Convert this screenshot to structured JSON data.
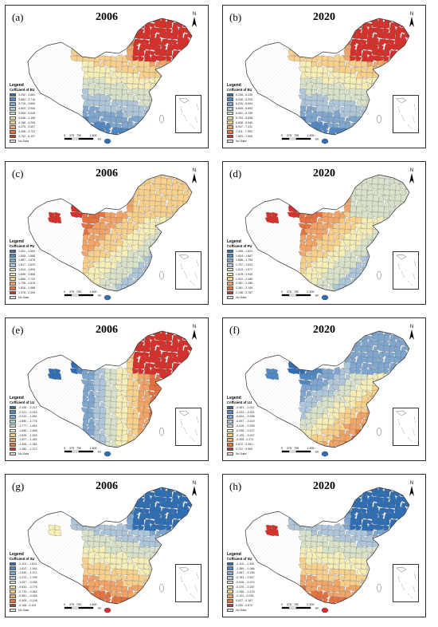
{
  "figure": {
    "panels": [
      {
        "label": "(a)",
        "year": "2006",
        "legend_title": "Legend",
        "legend_subtitle": "Cofficient of EU",
        "legend_items": [
          "3.292 - 3.681",
          "3.682 - 3.716",
          "3.716 - 3.600",
          "3.603 - 3.906",
          "3.908 - 4.045",
          "4.046 - 4.158",
          "4.158 - 4.208",
          "4.275 - 4.407",
          "4.408 - 4.731",
          "4.732 - 5.107"
        ],
        "no_data": "No Data",
        "colors": [
          "#2d6eb5",
          "#4f88c3",
          "#7ea6cf",
          "#aec6da",
          "#d8e2c8",
          "#f6eeb5",
          "#f8d08a",
          "#f2a466",
          "#e7703f",
          "#d7302a"
        ],
        "gradient": "diag",
        "invert": false,
        "northeast": 9,
        "xinjiang": -1
      },
      {
        "label": "(b)",
        "year": "2020",
        "legend_title": "Legend",
        "legend_subtitle": "Cofficient of EU",
        "legend_items": [
          "5.208 - 6.035",
          "6.036 - 6.226",
          "6.226 - 6.604",
          "6.605 - 6.693",
          "6.691 - 6.765",
          "6.754 - 6.838",
          "6.838 - 6.946",
          "6.947 - 7.411",
          "7.411 - 7.952",
          "7.853 - 7.505"
        ],
        "no_data": "No Data",
        "colors": [
          "#2d6eb5",
          "#4f88c3",
          "#7ea6cf",
          "#aec6da",
          "#d8e2c8",
          "#f6eeb5",
          "#f8d08a",
          "#f2a466",
          "#e7703f",
          "#d7302a"
        ],
        "gradient": "diag",
        "invert": false,
        "northeast": 9,
        "xinjiang": -1
      },
      {
        "label": "(c)",
        "year": "2006",
        "legend_title": "Legend",
        "legend_subtitle": "Cofficient of PU",
        "legend_items": [
          "1.401 - 1.504",
          "1.505 - 1.586",
          "1.587 - 1.676",
          "1.617 - 1.620",
          "1.614 - 1.694",
          "1.695 - 1.856",
          "1.856 - 1.734",
          "1.735 - 1.815",
          "1.816 - 1.986",
          "1.976 - 2.005"
        ],
        "no_data": "No Data",
        "colors": [
          "#2d6eb5",
          "#4f88c3",
          "#7ea6cf",
          "#aec6da",
          "#d8e2c8",
          "#f6eeb5",
          "#f8d08a",
          "#f2a466",
          "#e7703f",
          "#d7302a"
        ],
        "gradient": "coast",
        "invert": false,
        "northeast": 6,
        "xinjiang": 9
      },
      {
        "label": "(d)",
        "year": "2020",
        "legend_title": "Legend",
        "legend_subtitle": "Cofficient of PU",
        "legend_items": [
          "1.408 - 1.621",
          "1.624 - 1.687",
          "1.686 - 1.706",
          "1.707 - 1.812",
          "1.813 - 1.677",
          "1.678 - 1.949",
          "1.941 - 2.086",
          "2.087 - 2.285",
          "2.361 - 2.149",
          "2.148 - 2.767"
        ],
        "no_data": "No Data",
        "colors": [
          "#2d6eb5",
          "#4f88c3",
          "#7ea6cf",
          "#aec6da",
          "#d8e2c8",
          "#f6eeb5",
          "#f8d08a",
          "#f2a466",
          "#e7703f",
          "#d7302a"
        ],
        "gradient": "coast",
        "invert": false,
        "northeast": 4,
        "xinjiang": 9
      },
      {
        "label": "(e)",
        "year": "2006",
        "legend_title": "Legend",
        "legend_subtitle": "Cofficient of LU",
        "legend_items": [
          "-2.446 - -2.212",
          "-2.221 - -2.015",
          "-2.012 - -1.891",
          "-1.850 - -1.776",
          "-1.777 - -1.691",
          "-1.690 - -1.608",
          "-1.605 - -1.529",
          "-1.527 - -1.451",
          "-1.455 - -1.381",
          "-1.350 - -1.272"
        ],
        "no_data": "No Data",
        "colors": [
          "#2d6eb5",
          "#4f88c3",
          "#7ea6cf",
          "#aec6da",
          "#d8e2c8",
          "#f6eeb5",
          "#f8d08a",
          "#f2a466",
          "#e7703f",
          "#d7302a"
        ],
        "gradient": "east",
        "invert": false,
        "northeast": 9,
        "xinjiang": 0
      },
      {
        "label": "(f)",
        "year": "2020",
        "legend_title": "Legend",
        "legend_subtitle": "Cofficient of LU",
        "legend_items": [
          "-0.461 - -0.211",
          "-0.233 - -0.021",
          "-0.624 - -0.096",
          "-0.097 - -0.419",
          "-0.416 - -0.299",
          "-0.298 - -0.127",
          "-0.125 - -0.007",
          "-0.006 - 0.171",
          "0.572 - 0.401",
          "0.722 - 0.969"
        ],
        "no_data": "No Data",
        "colors": [
          "#2d6eb5",
          "#4f88c3",
          "#7ea6cf",
          "#aec6da",
          "#d8e2c8",
          "#f6eeb5",
          "#f8d08a",
          "#f2a466",
          "#e7703f",
          "#d7302a"
        ],
        "gradient": "southeast",
        "invert": false,
        "northeast": 2,
        "xinjiang": 1
      },
      {
        "label": "(g)",
        "year": "2006",
        "legend_title": "Legend",
        "legend_subtitle": "Cofficient of SU",
        "legend_items": [
          "-2.110 - -1.813",
          "-1.812 - -1.541",
          "-1.540 - -1.271",
          "-1.272 - -1.099",
          "-1.097 - -0.935",
          "-0.934 - -0.776",
          "-0.775 - -0.582",
          "-0.581 - -0.426",
          "-0.405 - -0.148",
          "-0.168 - 0.104"
        ],
        "no_data": "No Data",
        "colors": [
          "#2d6eb5",
          "#4f88c3",
          "#7ea6cf",
          "#aec6da",
          "#d8e2c8",
          "#f6eeb5",
          "#f8d08a",
          "#f2a466",
          "#e7703f",
          "#d7302a"
        ],
        "gradient": "diag",
        "invert": true,
        "northeast": 0,
        "xinjiang": 5
      },
      {
        "label": "(h)",
        "year": "2020",
        "legend_title": "Legend",
        "legend_subtitle": "Cofficient of SU",
        "legend_items": [
          "-2.110 - -1.390",
          "-1.389 - -1.066",
          "-1.067 - -0.784",
          "-0.783 - -0.517",
          "-0.518 - -0.374",
          "-0.375 - -0.257",
          "-0.256 - -0.123",
          "-0.123 - 0.026",
          "0.027 - 0.167",
          "0.259 - 0.672"
        ],
        "no_data": "No Data",
        "colors": [
          "#2d6eb5",
          "#4f88c3",
          "#7ea6cf",
          "#aec6da",
          "#d8e2c8",
          "#f6eeb5",
          "#f8d08a",
          "#f2a466",
          "#e7703f",
          "#d7302a"
        ],
        "gradient": "diag",
        "invert": true,
        "northeast": 0,
        "xinjiang": 9
      }
    ],
    "scale_labels": [
      "0",
      "375",
      "750",
      "1,500",
      "km"
    ],
    "north_label": "N"
  }
}
